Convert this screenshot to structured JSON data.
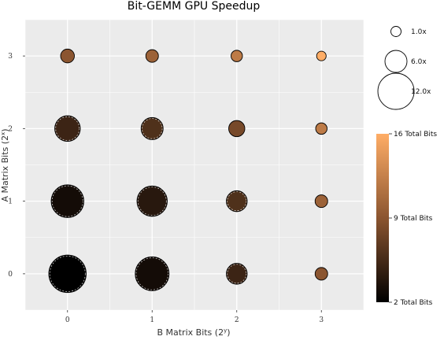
{
  "chart_data": {
    "type": "scatter",
    "title": "Bit-GEMM GPU Speedup",
    "xlabel": "B Matrix Bits (2",
    "xlabel_sup": "y",
    "xlabel_close": ")",
    "ylabel": "A Matrix Bits (2",
    "ylabel_sup": "x",
    "ylabel_close": ")",
    "x_ticks": [
      "0",
      "1",
      "2",
      "3"
    ],
    "y_ticks": [
      "0",
      "1",
      "2",
      "3"
    ],
    "xlim": [
      -0.5,
      3.5
    ],
    "ylim": [
      -0.5,
      3.5
    ],
    "grid": true,
    "points": [
      {
        "x": 0,
        "y": 0,
        "speedup": 12.5,
        "total_bits": 2
      },
      {
        "x": 1,
        "y": 0,
        "speedup": 11.0,
        "total_bits": 3
      },
      {
        "x": 2,
        "y": 0,
        "speedup": 5.5,
        "total_bits": 5
      },
      {
        "x": 3,
        "y": 0,
        "speedup": 2.0,
        "total_bits": 9
      },
      {
        "x": 0,
        "y": 1,
        "speedup": 10.5,
        "total_bits": 3
      },
      {
        "x": 1,
        "y": 1,
        "speedup": 9.5,
        "total_bits": 4
      },
      {
        "x": 2,
        "y": 1,
        "speedup": 5.5,
        "total_bits": 6
      },
      {
        "x": 3,
        "y": 1,
        "speedup": 2.0,
        "total_bits": 10
      },
      {
        "x": 0,
        "y": 2,
        "speedup": 7.5,
        "total_bits": 5
      },
      {
        "x": 1,
        "y": 2,
        "speedup": 6.0,
        "total_bits": 6
      },
      {
        "x": 2,
        "y": 2,
        "speedup": 3.5,
        "total_bits": 8
      },
      {
        "x": 3,
        "y": 2,
        "speedup": 1.5,
        "total_bits": 12
      },
      {
        "x": 0,
        "y": 3,
        "speedup": 2.5,
        "total_bits": 9
      },
      {
        "x": 1,
        "y": 3,
        "speedup": 2.0,
        "total_bits": 10
      },
      {
        "x": 2,
        "y": 3,
        "speedup": 1.5,
        "total_bits": 12
      },
      {
        "x": 3,
        "y": 3,
        "speedup": 0.7,
        "total_bits": 16
      }
    ],
    "size_legend": [
      {
        "value": 1.0,
        "label": "1.0x"
      },
      {
        "value": 6.0,
        "label": "6.0x"
      },
      {
        "value": 12.0,
        "label": "12.0x"
      }
    ],
    "color_legend": {
      "min": 2,
      "max": 16,
      "ticks": [
        {
          "value": 16,
          "label": "16 Total Bits"
        },
        {
          "value": 9,
          "label": "9 Total Bits"
        },
        {
          "value": 2,
          "label": "2 Total Bits"
        }
      ]
    },
    "colors": {
      "panel": "#ebebeb",
      "grid": "#ffffff",
      "low": "#000000",
      "mid": "#8b5530",
      "high": "#ffad66"
    }
  }
}
